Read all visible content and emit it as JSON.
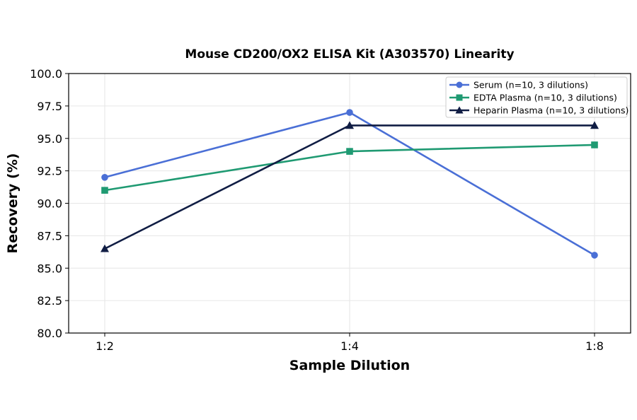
{
  "chart_data": {
    "type": "line",
    "title": "Mouse CD200/OX2 ELISA Kit (A303570) Linearity",
    "xlabel": "Sample Dilution",
    "ylabel": "Recovery (%)",
    "categories": [
      "1:2",
      "1:4",
      "1:8"
    ],
    "ylim": [
      80.0,
      100.0
    ],
    "yticks": [
      "80.0",
      "82.5",
      "85.0",
      "87.5",
      "90.0",
      "92.5",
      "95.0",
      "97.5",
      "100.0"
    ],
    "grid": true,
    "legend_position": "top-right",
    "series": [
      {
        "name": "Serum (n=10, 3 dilutions)",
        "values": [
          92.0,
          97.0,
          86.0
        ],
        "color": "#4a6fd6",
        "marker": "circle"
      },
      {
        "name": "EDTA Plasma (n=10, 3 dilutions)",
        "values": [
          91.0,
          94.0,
          94.5
        ],
        "color": "#1f9a72",
        "marker": "square"
      },
      {
        "name": "Heparin Plasma (n=10, 3 dilutions)",
        "values": [
          86.5,
          96.0,
          96.0
        ],
        "color": "#101d44",
        "marker": "triangle"
      }
    ]
  }
}
